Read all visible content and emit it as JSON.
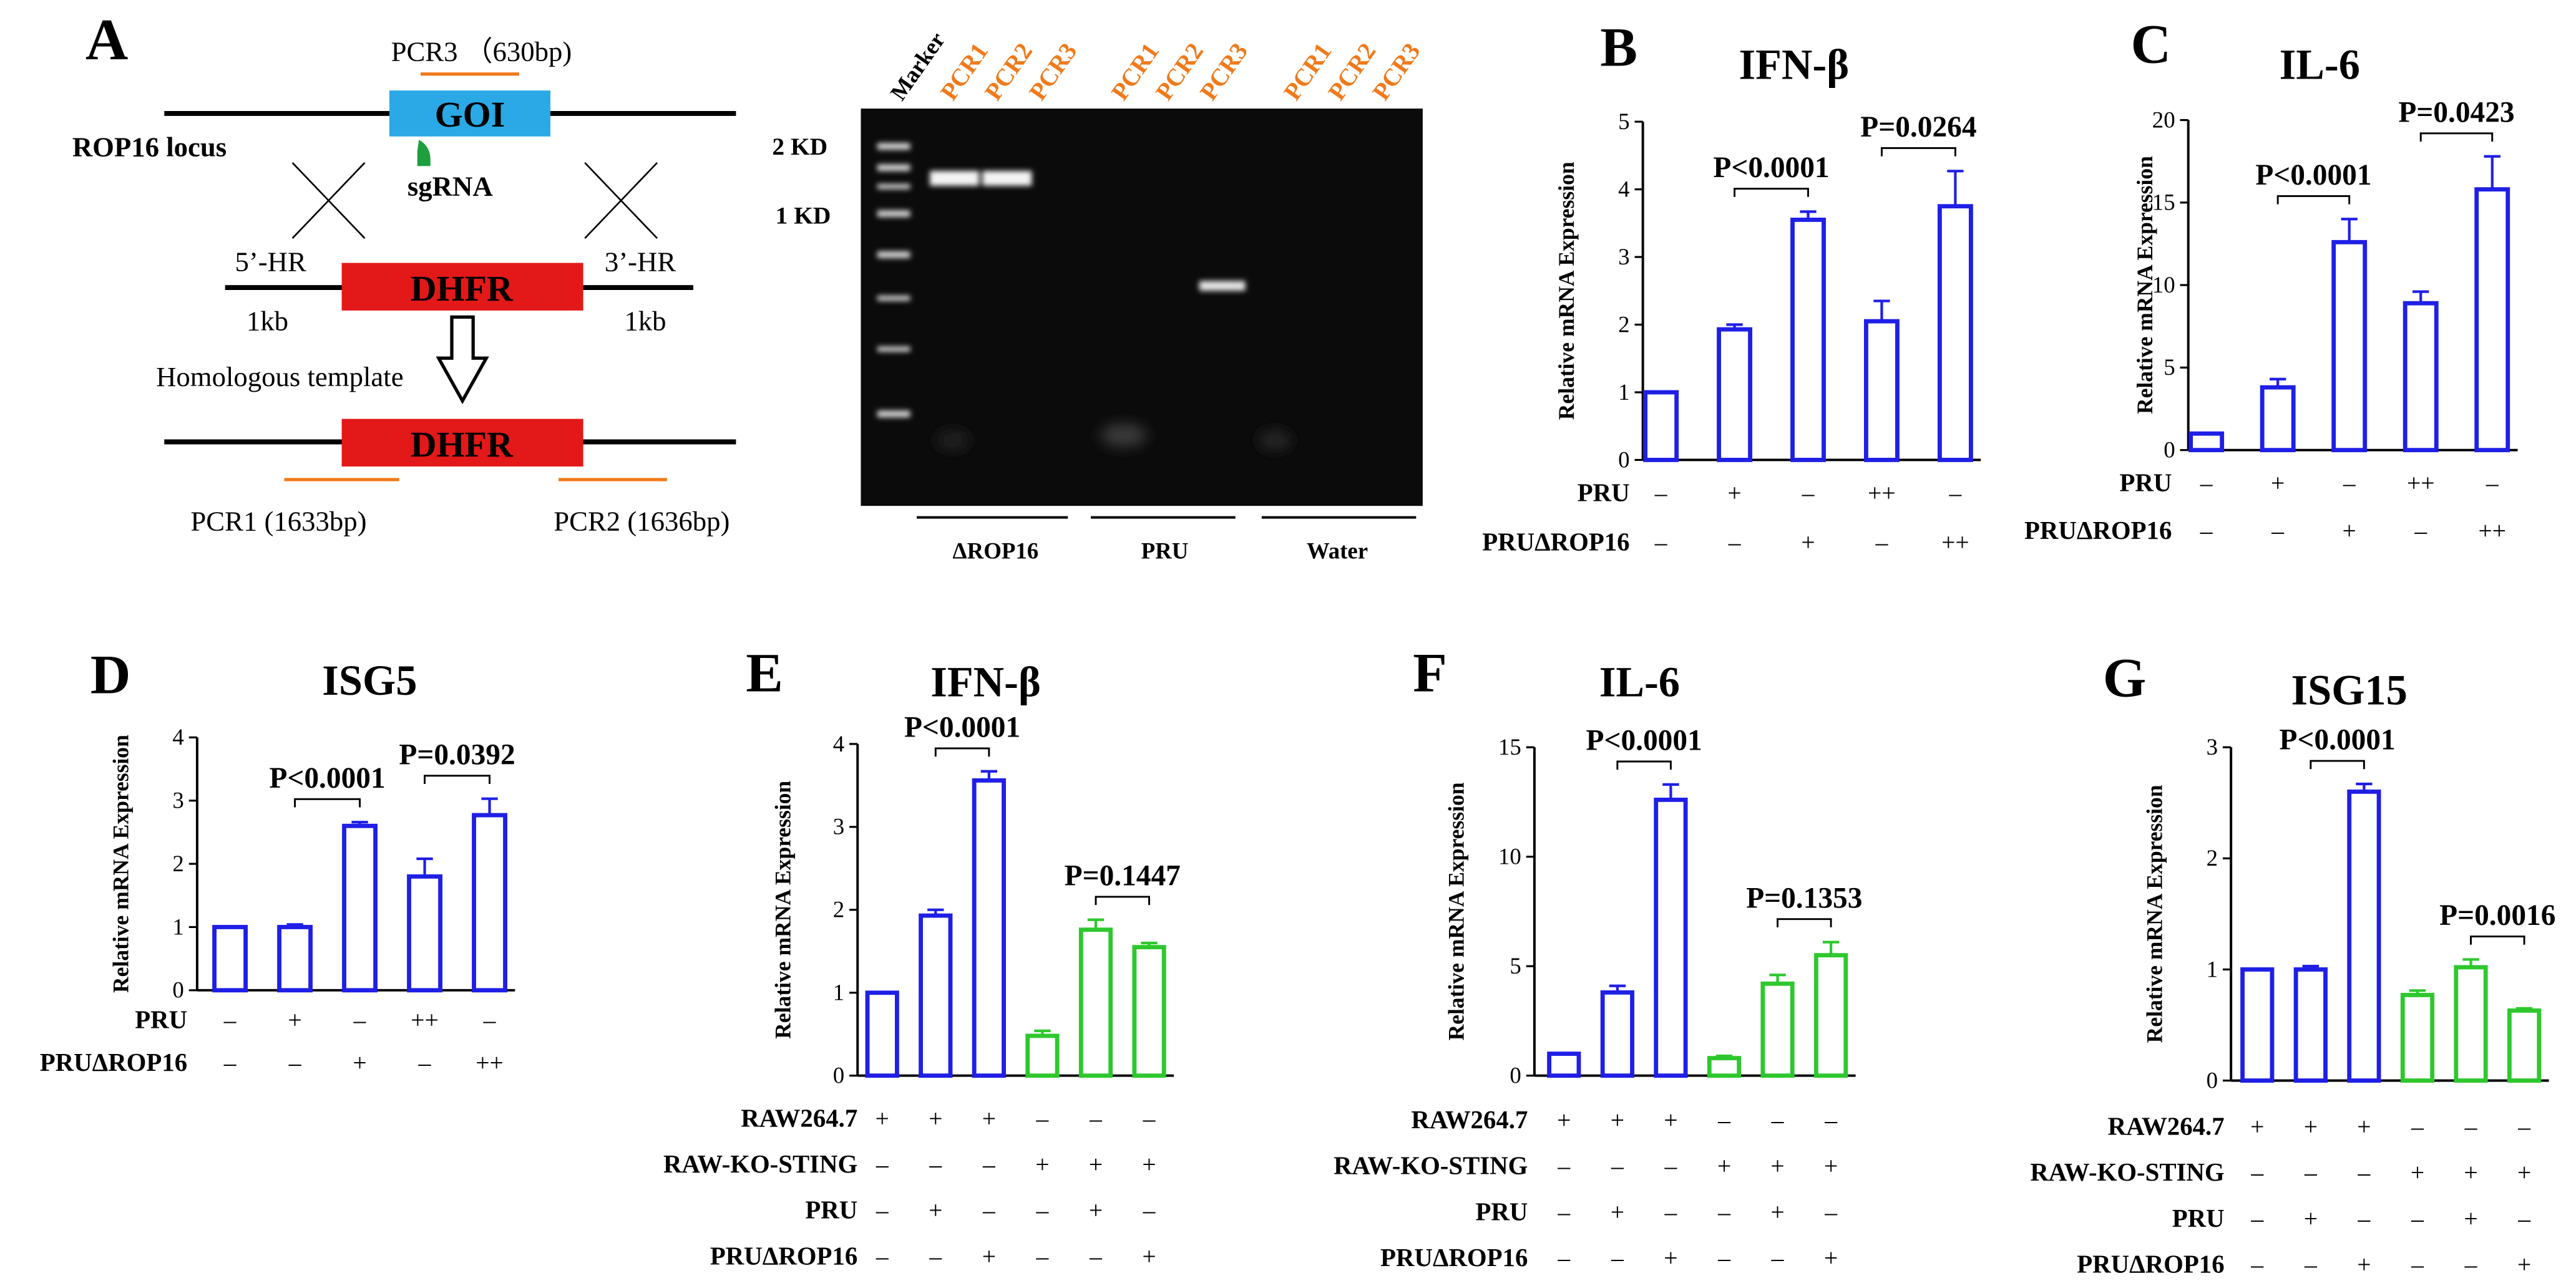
{
  "colors": {
    "blue": "#1f1fe6",
    "green": "#2ec82e",
    "orange": "#f07a1a",
    "red": "#e31818",
    "goi": "#2aa9e6",
    "sgrna": "#1e9e3e"
  },
  "schematic": {
    "panel_letter": "A",
    "locus_label": "ROP16 locus",
    "goi_label": "GOI",
    "sgrna_label": "sgRNA",
    "pcr3_label": "PCR3 （630bp)",
    "hr5_label": "5’-HR",
    "hr3_label": "3’-HR",
    "kb_left": "1kb",
    "kb_right": "1kb",
    "dhfr_label": "DHFR",
    "template_label": "Homologous template",
    "pcr1_label": "PCR1 (1633bp)",
    "pcr2_label": "PCR2 (1636bp)"
  },
  "gel": {
    "marker_label": "Marker",
    "lane_labels": [
      "PCR1",
      "PCR2",
      "PCR3",
      "PCR1",
      "PCR2",
      "PCR3",
      "PCR1",
      "PCR2",
      "PCR3"
    ],
    "size_2kd": "2 KD",
    "size_1kd": "1 KD",
    "groups": [
      "ΔROP16",
      "PRU",
      "Water"
    ]
  },
  "chart_data": [
    {
      "panel": "B",
      "type": "bar",
      "title": "IFN-β",
      "ylabel": "Relative mRNA Expression",
      "ylim": [
        0,
        5
      ],
      "yticks": [
        0,
        1,
        2,
        3,
        4,
        5
      ],
      "values": [
        1.0,
        1.93,
        3.55,
        2.05,
        3.75
      ],
      "errors": [
        0,
        0.07,
        0.12,
        0.3,
        0.52
      ],
      "series_colors": [
        "blue",
        "blue",
        "blue",
        "blue",
        "blue"
      ],
      "row_labels": [
        "PRU",
        "PRUΔROP16"
      ],
      "row_signs": [
        [
          "–",
          "+",
          "–",
          "++",
          "–"
        ],
        [
          "–",
          "–",
          "+",
          "–",
          "++"
        ]
      ],
      "annotations": [
        {
          "text": "P<0.0001",
          "from": 1,
          "to": 2
        },
        {
          "text": "P=0.0264",
          "from": 3,
          "to": 4
        }
      ]
    },
    {
      "panel": "C",
      "type": "bar",
      "title": "IL-6",
      "ylabel": "Relative mRNA Expression",
      "ylim": [
        0,
        20
      ],
      "yticks": [
        0,
        5,
        10,
        15,
        20
      ],
      "values": [
        1.0,
        3.8,
        12.6,
        8.9,
        15.8
      ],
      "errors": [
        0,
        0.5,
        1.4,
        0.7,
        2.0
      ],
      "series_colors": [
        "blue",
        "blue",
        "blue",
        "blue",
        "blue"
      ],
      "row_labels": [
        "PRU",
        "PRUΔROP16"
      ],
      "row_signs": [
        [
          "–",
          "+",
          "–",
          "++",
          "–"
        ],
        [
          "–",
          "–",
          "+",
          "–",
          "++"
        ]
      ],
      "annotations": [
        {
          "text": "P<0.0001",
          "from": 1,
          "to": 2
        },
        {
          "text": "P=0.0423",
          "from": 3,
          "to": 4
        }
      ]
    },
    {
      "panel": "D",
      "type": "bar",
      "title": "ISG5",
      "ylabel": "Relative mRNA Expression",
      "ylim": [
        0,
        4
      ],
      "yticks": [
        0,
        1,
        2,
        3,
        4
      ],
      "values": [
        1.0,
        1.0,
        2.6,
        1.8,
        2.77
      ],
      "errors": [
        0,
        0.04,
        0.06,
        0.28,
        0.26
      ],
      "series_colors": [
        "blue",
        "blue",
        "blue",
        "blue",
        "blue"
      ],
      "row_labels": [
        "PRU",
        "PRUΔROP16"
      ],
      "row_signs": [
        [
          "–",
          "+",
          "–",
          "++",
          "–"
        ],
        [
          "–",
          "–",
          "+",
          "–",
          "++"
        ]
      ],
      "annotations": [
        {
          "text": "P<0.0001",
          "from": 1,
          "to": 2
        },
        {
          "text": "P=0.0392",
          "from": 3,
          "to": 4
        }
      ]
    },
    {
      "panel": "E",
      "type": "bar",
      "title": "IFN-β",
      "ylabel": "Relative mRNA Expression",
      "ylim": [
        0,
        4
      ],
      "yticks": [
        0,
        1,
        2,
        3,
        4
      ],
      "values": [
        1.0,
        1.93,
        3.56,
        0.48,
        1.76,
        1.55
      ],
      "errors": [
        0,
        0.07,
        0.11,
        0.06,
        0.12,
        0.05
      ],
      "series_colors": [
        "blue",
        "blue",
        "blue",
        "green",
        "green",
        "green"
      ],
      "row_labels": [
        "RAW264.7",
        "RAW-KO-STING",
        "PRU",
        "PRUΔROP16"
      ],
      "row_signs": [
        [
          "+",
          "+",
          "+",
          "–",
          "–",
          "–"
        ],
        [
          "–",
          "–",
          "–",
          "+",
          "+",
          "+"
        ],
        [
          "–",
          "+",
          "–",
          "–",
          "+",
          "–"
        ],
        [
          "–",
          "–",
          "+",
          "–",
          "–",
          "+"
        ]
      ],
      "annotations": [
        {
          "text": "P<0.0001",
          "from": 1,
          "to": 2
        },
        {
          "text": "P=0.1447",
          "from": 4,
          "to": 5
        }
      ]
    },
    {
      "panel": "F",
      "type": "bar",
      "title": "IL-6",
      "ylabel": "Relative mRNA Expression",
      "ylim": [
        0,
        15
      ],
      "yticks": [
        0,
        5,
        10,
        15
      ],
      "values": [
        1.0,
        3.8,
        12.6,
        0.8,
        4.2,
        5.5
      ],
      "errors": [
        0,
        0.3,
        0.7,
        0.1,
        0.4,
        0.6
      ],
      "series_colors": [
        "blue",
        "blue",
        "blue",
        "green",
        "green",
        "green"
      ],
      "row_labels": [
        "RAW264.7",
        "RAW-KO-STING",
        "PRU",
        "PRUΔROP16"
      ],
      "row_signs": [
        [
          "+",
          "+",
          "+",
          "–",
          "–",
          "–"
        ],
        [
          "–",
          "–",
          "–",
          "+",
          "+",
          "+"
        ],
        [
          "–",
          "+",
          "–",
          "–",
          "+",
          "–"
        ],
        [
          "–",
          "–",
          "+",
          "–",
          "–",
          "+"
        ]
      ],
      "annotations": [
        {
          "text": "P<0.0001",
          "from": 1,
          "to": 2
        },
        {
          "text": "P=0.1353",
          "from": 4,
          "to": 5
        }
      ]
    },
    {
      "panel": "G",
      "type": "bar",
      "title": "ISG15",
      "ylabel": "Relative mRNA Expression",
      "ylim": [
        0,
        3
      ],
      "yticks": [
        0,
        1,
        2,
        3
      ],
      "values": [
        1.0,
        1.0,
        2.6,
        0.77,
        1.02,
        0.63
      ],
      "errors": [
        0,
        0.03,
        0.07,
        0.04,
        0.07,
        0.02
      ],
      "series_colors": [
        "blue",
        "blue",
        "blue",
        "green",
        "green",
        "green"
      ],
      "row_labels": [
        "RAW264.7",
        "RAW-KO-STING",
        "PRU",
        "PRUΔROP16"
      ],
      "row_signs": [
        [
          "+",
          "+",
          "+",
          "–",
          "–",
          "–"
        ],
        [
          "–",
          "–",
          "–",
          "+",
          "+",
          "+"
        ],
        [
          "–",
          "+",
          "–",
          "–",
          "+",
          "–"
        ],
        [
          "–",
          "–",
          "+",
          "–",
          "–",
          "+"
        ]
      ],
      "annotations": [
        {
          "text": "P<0.0001",
          "from": 1,
          "to": 2
        },
        {
          "text": "P=0.0016",
          "from": 4,
          "to": 5
        }
      ]
    }
  ]
}
